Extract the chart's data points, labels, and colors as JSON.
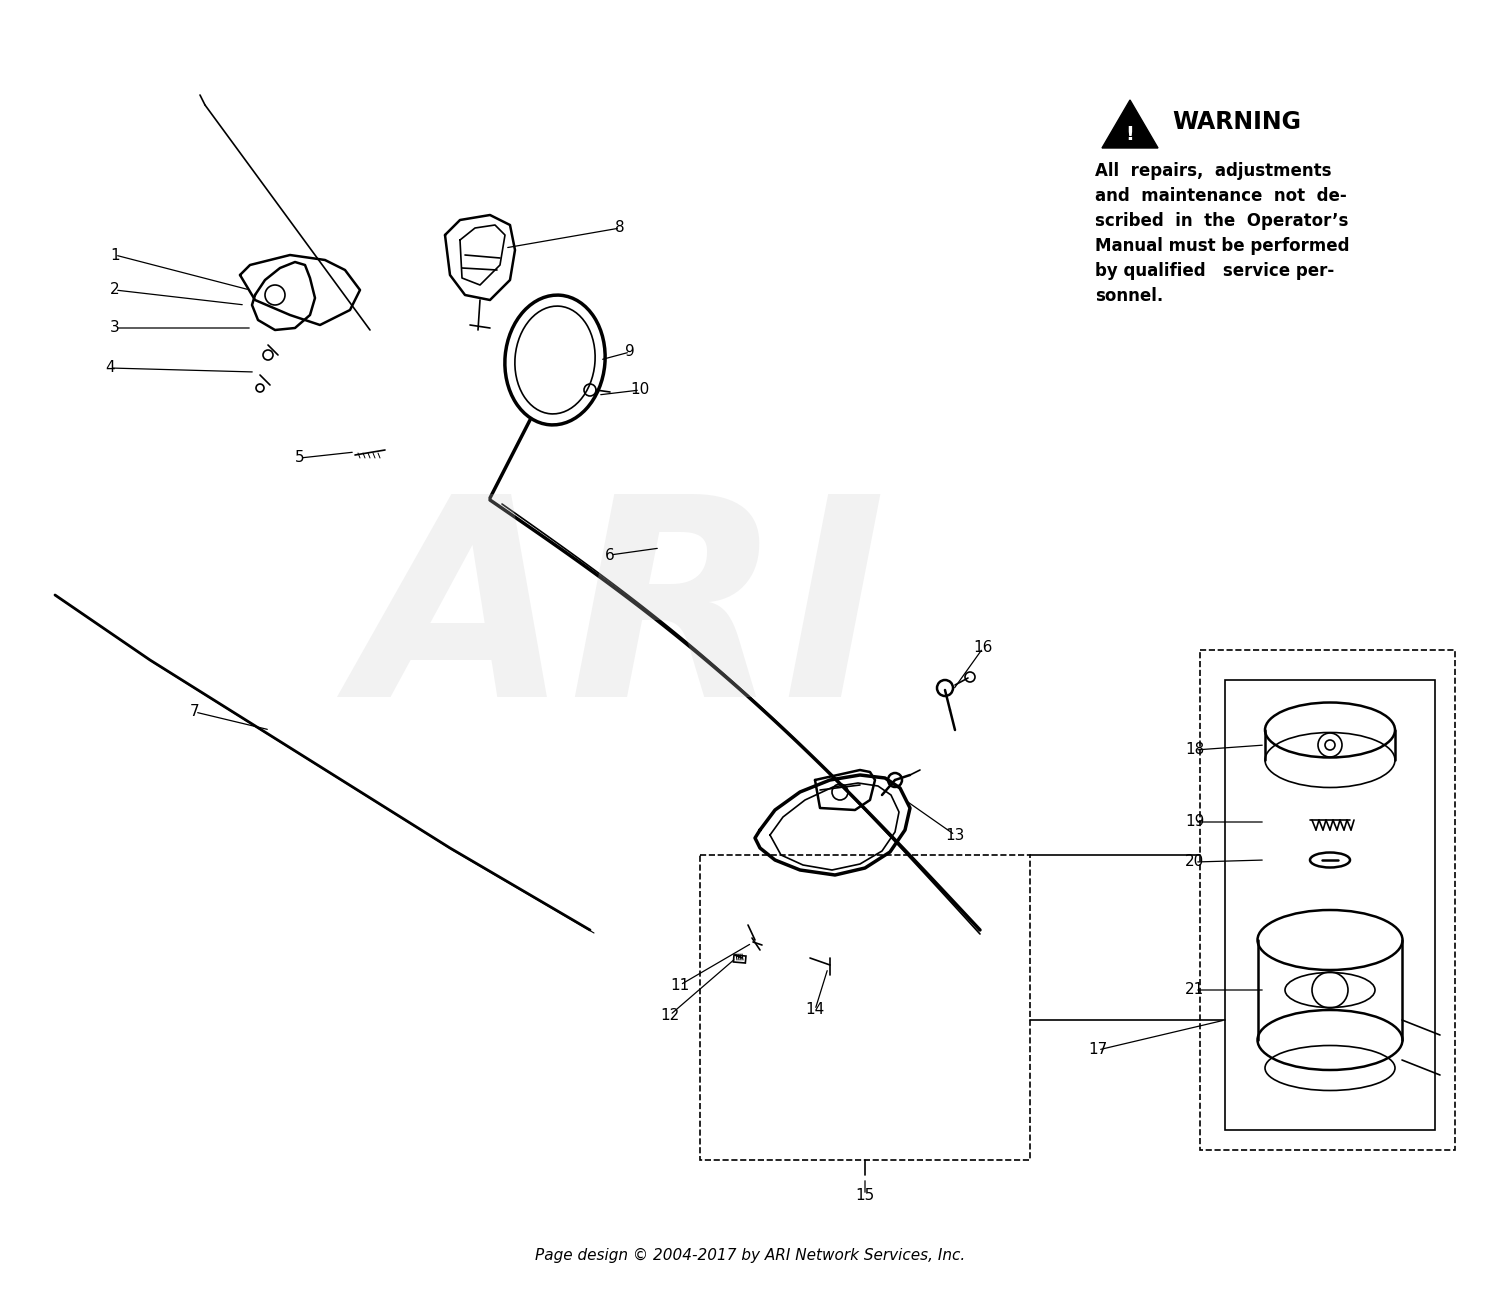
{
  "warning_title": "WARNING",
  "warning_text": "All  repairs,  adjustments\nand  maintenance  not  de-\nscribed  in  the  Operator’s\nManual must be performed\nby qualified   service per-\nsonnel.",
  "footer": "Page design © 2004-2017 by ARI Network Services, Inc.",
  "bg_color": "#ffffff",
  "fg_color": "#000000",
  "watermark": "ARI"
}
